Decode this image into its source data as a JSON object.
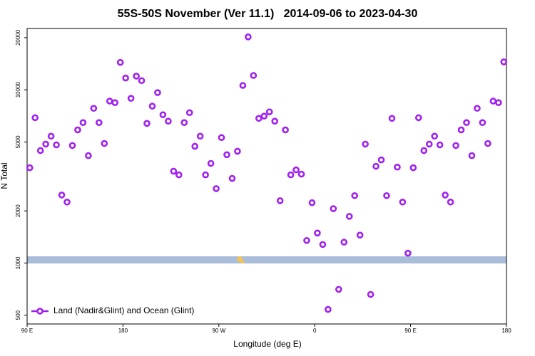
{
  "chart_data": {
    "type": "scatter",
    "title": "55S-50S November (Ver 11.1)   2014-09-06 to 2023-04-30",
    "x_label": "Longitude (deg E)",
    "y_label": "N Total",
    "log_y": true,
    "legend": "bottom-left",
    "x": [
      92.5,
      97.5,
      102.5,
      107.5,
      112.5,
      117.5,
      122.5,
      127.5,
      132.5,
      137.5,
      142.5,
      147.5,
      152.5,
      157.5,
      162.5,
      167.5,
      172.5,
      177.5,
      182.5,
      187.5,
      192.5,
      197.5,
      202.5,
      207.5,
      212.5,
      217.5,
      222.5,
      227.5,
      232.5,
      237.5,
      242.5,
      247.5,
      252.5,
      257.5,
      262.5,
      267.5,
      272.5,
      277.5,
      282.5,
      287.5,
      292.5,
      297.5,
      302.5,
      307.5,
      312.5,
      317.5,
      322.5,
      327.5,
      332.5,
      337.5,
      342.5,
      347.5,
      352.5,
      357.5,
      362.5,
      367.5,
      372.5,
      377.5,
      382.5,
      387.5,
      392.5,
      397.5,
      402.5,
      407.5,
      412.5,
      417.5,
      422.5,
      427.5,
      432.5,
      437.5,
      442.5,
      447.5,
      452.5,
      457.5,
      462.5,
      467.5,
      472.5,
      477.5,
      482.5,
      487.5,
      492.5,
      497.5,
      502.5,
      507.5,
      512.5,
      517.5,
      522.5,
      527.5,
      532.5,
      537.5
    ],
    "series": [
      {
        "name": "Land (Nadir&Glint) and Ocean (Glint)",
        "color": "#a020f0",
        "values": [
          3550,
          6900,
          4460,
          4860,
          5400,
          4810,
          2470,
          2250,
          4770,
          5870,
          6470,
          4170,
          7820,
          6470,
          4900,
          8610,
          8430,
          14400,
          11700,
          8930,
          12000,
          11300,
          6400,
          8050,
          9640,
          7180,
          6590,
          3390,
          3230,
          6470,
          7380,
          4720,
          5400,
          3230,
          3760,
          2690,
          5300,
          4220,
          3080,
          4420,
          10600,
          20200,
          12100,
          6840,
          7050,
          7460,
          6590,
          2290,
          5870,
          3230,
          3450,
          3260,
          1350,
          2230,
          1490,
          1280,
          540,
          2060,
          705,
          1320,
          1860,
          2450,
          1450,
          4860,
          659,
          3620,
          3940,
          2450,
          6840,
          3580,
          2250,
          1140,
          3550,
          6900,
          4460,
          4860,
          5400,
          4810,
          2470,
          2250,
          4770,
          5870,
          6470,
          4170,
          7820,
          6470,
          4900,
          8610,
          8430,
          14500
        ]
      }
    ],
    "xlim": [
      90,
      540
    ],
    "xticks": [
      {
        "value": 90,
        "label": "90 E"
      },
      180,
      {
        "value": 270,
        "label": "90 W"
      },
      {
        "value": 360,
        "label": "0"
      },
      {
        "value": 450,
        "label": "90 E"
      },
      {
        "value": 540,
        "label": "180"
      }
    ],
    "ylim": [
      445,
      22600
    ],
    "yticks": [
      500,
      1000,
      2000,
      5000,
      10000,
      20000
    ]
  }
}
